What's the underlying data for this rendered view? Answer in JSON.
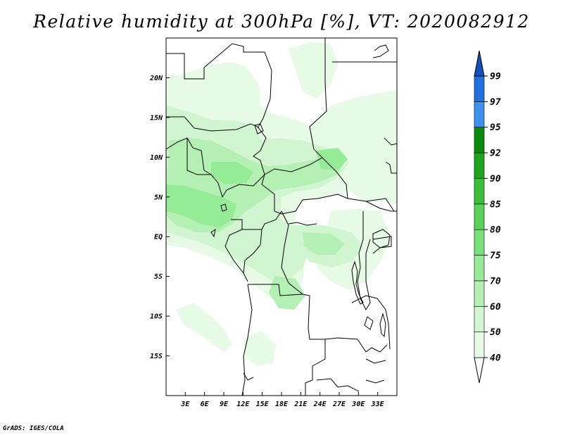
{
  "title": "Relative humidity at 300hPa [%], VT: 2020082912",
  "credit": "GrADS: IGES/COLA",
  "map": {
    "lon_range": [
      0,
      36
    ],
    "lat_range": [
      -20,
      25
    ],
    "lon_ticks": [
      "3E",
      "6E",
      "9E",
      "12E",
      "15E",
      "18E",
      "21E",
      "24E",
      "27E",
      "30E",
      "33E"
    ],
    "lat_ticks": [
      "20N",
      "15N",
      "10N",
      "5N",
      "EQ",
      "5S",
      "10S",
      "15S"
    ]
  },
  "colorbar": {
    "levels": [
      "40",
      "50",
      "60",
      "70",
      "75",
      "80",
      "85",
      "90",
      "92",
      "95",
      "97",
      "99"
    ],
    "colors": [
      "#ffffff",
      "#e6fae6",
      "#d0f5d0",
      "#b4f0b4",
      "#96eb96",
      "#78e078",
      "#5ad25a",
      "#3cc03c",
      "#1ea41e",
      "#0a8a0a",
      "#4090f0",
      "#2070e0",
      "#1050c0"
    ]
  }
}
